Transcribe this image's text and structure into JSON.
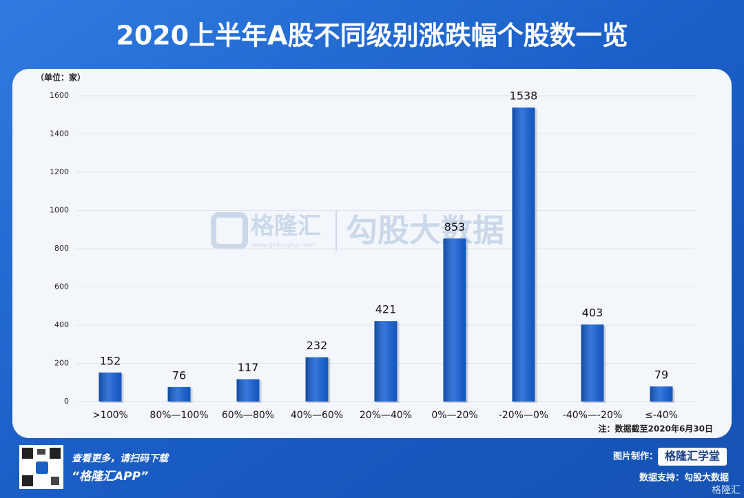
{
  "chart_data": {
    "type": "bar",
    "title": "2020上半年A股不同级别涨跌幅个股数一览",
    "unit_label": "（单位：家）",
    "note": "注：数据截至2020年6月30日",
    "categories": [
      ">100%",
      "80%—100%",
      "60%—80%",
      "40%—60%",
      "20%—40%",
      "0%—20%",
      "-20%—0%",
      "-40%—-20%",
      "≤-40%"
    ],
    "values": [
      152,
      76,
      117,
      232,
      421,
      853,
      1538,
      403,
      79
    ],
    "color": "#1560d4",
    "ylim": [
      0,
      1600
    ],
    "yticks": [
      0,
      200,
      400,
      600,
      800,
      1000,
      1200,
      1400,
      1600
    ],
    "grid": true
  },
  "watermark": {
    "brand": "格隆汇",
    "site": "www.gelonghui.com",
    "partner": "勾股大数据"
  },
  "footer": {
    "scan_text": "查看更多，请扫码下载",
    "app_name": "“格隆汇APP”",
    "made_by_label": "图片制作：",
    "made_by": "格隆汇学堂",
    "data_label": "数据支持：勾股大数据",
    "corner_brand": "格隆汇"
  }
}
